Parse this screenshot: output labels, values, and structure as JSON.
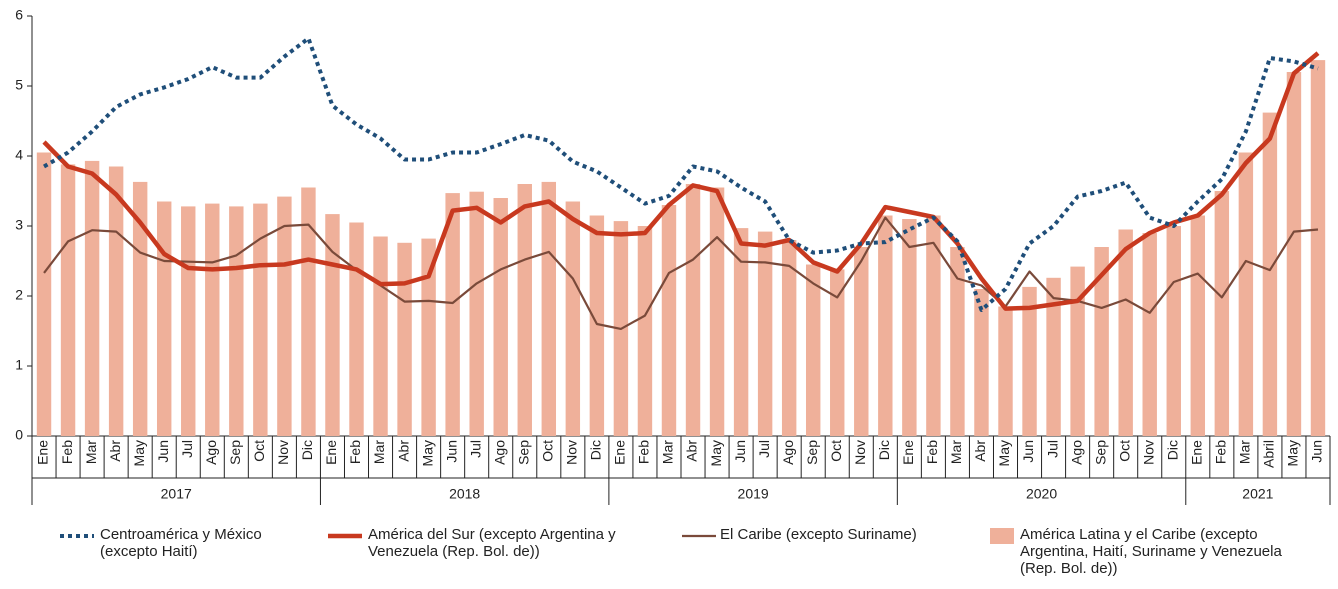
{
  "chart_data": {
    "type": "bar",
    "categories": [
      "Ene",
      "Feb",
      "Mar",
      "Abr",
      "May",
      "Jun",
      "Jul",
      "Ago",
      "Sep",
      "Oct",
      "Nov",
      "Dic",
      "Ene",
      "Feb",
      "Mar",
      "Abr",
      "May",
      "Jun",
      "Jul",
      "Ago",
      "Sep",
      "Oct",
      "Nov",
      "Dic",
      "Ene",
      "Feb",
      "Mar",
      "Abr",
      "May",
      "Jun",
      "Jul",
      "Ago",
      "Sep",
      "Oct",
      "Nov",
      "Dic",
      "Ene",
      "Feb",
      "Mar",
      "Abr",
      "May",
      "Jun",
      "Jul",
      "Ago",
      "Sep",
      "Oct",
      "Nov",
      "Dic",
      "Ene",
      "Feb",
      "Mar",
      "Abril",
      "May",
      "Jun"
    ],
    "groups": [
      "2017",
      "2018",
      "2019",
      "2020",
      "2021"
    ],
    "ylim": [
      0,
      6
    ],
    "yticks": [
      0,
      1,
      2,
      3,
      4,
      5,
      6
    ],
    "series": [
      {
        "name": "Centroamérica y México (excepto Haití)",
        "type": "line",
        "style": "dotted",
        "color": "#1f4e79",
        "values": [
          3.85,
          4.05,
          4.35,
          4.7,
          4.88,
          4.98,
          5.1,
          5.27,
          5.12,
          5.12,
          5.42,
          5.68,
          4.72,
          4.45,
          4.25,
          3.95,
          3.95,
          4.05,
          4.05,
          4.17,
          4.3,
          4.22,
          3.92,
          3.78,
          3.55,
          3.32,
          3.43,
          3.85,
          3.78,
          3.55,
          3.35,
          2.8,
          2.62,
          2.65,
          2.75,
          2.77,
          2.95,
          3.12,
          2.78,
          1.8,
          2.1,
          2.75,
          3.0,
          3.42,
          3.5,
          3.62,
          3.12,
          3.0,
          3.35,
          3.67,
          4.35,
          5.4,
          5.35,
          5.25
        ]
      },
      {
        "name": "América del Sur (excepto Argentina y Venezuela (Rep. Bol. de))",
        "type": "line",
        "style": "thick",
        "color": "#c8391f",
        "values": [
          4.2,
          3.85,
          3.75,
          3.45,
          3.05,
          2.6,
          2.4,
          2.38,
          2.4,
          2.44,
          2.45,
          2.52,
          2.45,
          2.38,
          2.17,
          2.18,
          2.28,
          3.22,
          3.26,
          3.05,
          3.28,
          3.35,
          3.1,
          2.9,
          2.88,
          2.9,
          3.3,
          3.58,
          3.5,
          2.75,
          2.72,
          2.8,
          2.48,
          2.35,
          2.75,
          3.27,
          3.2,
          3.13,
          2.75,
          2.25,
          1.82,
          1.83,
          1.88,
          1.93,
          2.3,
          2.67,
          2.9,
          3.05,
          3.15,
          3.45,
          3.9,
          4.25,
          5.18,
          5.47
        ]
      },
      {
        "name": "El Caribe (excepto Suriname)",
        "type": "line",
        "style": "thin",
        "color": "#7a4a3a",
        "values": [
          2.33,
          2.78,
          2.94,
          2.92,
          2.62,
          2.5,
          2.49,
          2.48,
          2.58,
          2.82,
          3.0,
          3.02,
          2.63,
          2.37,
          2.15,
          1.92,
          1.93,
          1.9,
          2.18,
          2.38,
          2.52,
          2.63,
          2.25,
          1.6,
          1.53,
          1.72,
          2.33,
          2.52,
          2.84,
          2.49,
          2.48,
          2.43,
          2.18,
          1.98,
          2.5,
          3.12,
          2.7,
          2.76,
          2.25,
          2.15,
          1.85,
          2.35,
          1.97,
          1.93,
          1.83,
          1.95,
          1.76,
          2.2,
          2.32,
          1.98,
          2.5,
          2.37,
          2.92,
          2.95
        ]
      },
      {
        "name": "América Latina y el Caribe (excepto Argentina, Haití, Suriname y Venezuela (Rep. Bol. de))",
        "type": "bar",
        "color": "#efb09a",
        "values": [
          4.05,
          3.88,
          3.93,
          3.85,
          3.63,
          3.35,
          3.28,
          3.32,
          3.28,
          3.32,
          3.42,
          3.55,
          3.17,
          3.05,
          2.85,
          2.76,
          2.82,
          3.47,
          3.49,
          3.4,
          3.6,
          3.63,
          3.35,
          3.15,
          3.07,
          3.0,
          3.3,
          3.6,
          3.55,
          2.97,
          2.92,
          2.8,
          2.45,
          2.38,
          2.7,
          3.15,
          3.1,
          3.15,
          2.7,
          2.1,
          1.85,
          2.13,
          2.26,
          2.42,
          2.7,
          2.95,
          2.9,
          3.0,
          3.15,
          3.5,
          4.05,
          4.62,
          5.2,
          5.37
        ]
      }
    ]
  }
}
